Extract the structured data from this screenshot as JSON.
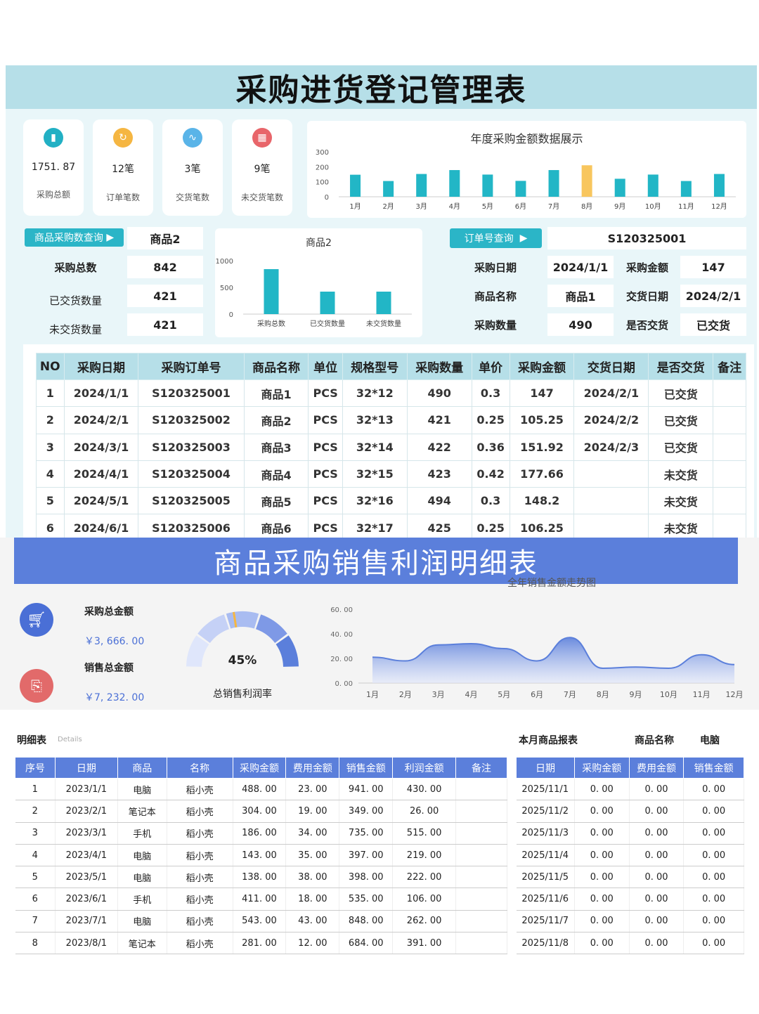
{
  "title1": "采购进货登记管理表",
  "kpis": [
    {
      "value": "1751. 87",
      "label": "采购总额",
      "icon": "bar-chart-icon",
      "color": "#22b0c4"
    },
    {
      "value": "12笔",
      "label": "订单笔数",
      "icon": "refresh-icon",
      "color": "#f5b642"
    },
    {
      "value": "3笔",
      "label": "交货笔数",
      "icon": "line-chart-icon",
      "color": "#5ab4e8"
    },
    {
      "value": "9笔",
      "label": "未交货笔数",
      "icon": "calendar-icon",
      "color": "#e8656a"
    }
  ],
  "annual": {
    "title": "年度采购金额数据展示"
  },
  "chart_data": [
    {
      "type": "bar",
      "title": "年度采购金额数据展示",
      "categories": [
        "1月",
        "2月",
        "3月",
        "4月",
        "5月",
        "6月",
        "7月",
        "8月",
        "9月",
        "10月",
        "11月",
        "12月"
      ],
      "values": [
        147,
        105,
        152,
        178,
        148,
        106,
        178,
        210,
        120,
        148,
        105,
        152
      ],
      "yticks": [
        "0",
        "100",
        "200",
        "300"
      ],
      "ylim": [
        0,
        300
      ],
      "highlight_index": 7,
      "color": "#22b6c6",
      "highlight_color": "#f8c65e"
    },
    {
      "type": "bar",
      "title": "商品2",
      "categories": [
        "采购总数",
        "已交货数量",
        "未交货数量"
      ],
      "values": [
        842,
        421,
        421
      ],
      "yticks": [
        "0",
        "500",
        "1000"
      ],
      "ylim": [
        0,
        1000
      ],
      "color": "#22b6c6"
    },
    {
      "type": "area",
      "title": "全年销售金额走势图",
      "categories": [
        "1月",
        "2月",
        "3月",
        "4月",
        "5月",
        "6月",
        "7月",
        "8月",
        "9月",
        "10月",
        "11月",
        "12月"
      ],
      "values": [
        21,
        18,
        31,
        32,
        28,
        18,
        37,
        12,
        13,
        12,
        23,
        15
      ],
      "yticks": [
        "0. 00",
        "20. 00",
        "40. 00",
        "60. 00"
      ],
      "ylim": [
        0,
        60
      ],
      "color": "#5b7fdb"
    },
    {
      "type": "gauge",
      "value": 0.45,
      "label": "45%",
      "caption": "总销售利润率"
    }
  ],
  "query": {
    "btn": "商品采购数查询",
    "product": "商品2",
    "rows": [
      {
        "label": "采购总数",
        "value": "842"
      },
      {
        "label": "已交货数量",
        "value": "421"
      },
      {
        "label": "未交货数量",
        "value": "421"
      }
    ],
    "chart_title": "商品2"
  },
  "order": {
    "btn": "订单号查询",
    "id": "S120325001",
    "r1": [
      "采购日期",
      "2024/1/1",
      "采购金额",
      "147"
    ],
    "r2": [
      "商品名称",
      "商品1",
      "交货日期",
      "2024/2/1"
    ],
    "r3": [
      "采购数量",
      "490",
      "是否交货",
      "已交货"
    ]
  },
  "t1": {
    "headers": [
      "NO",
      "采购日期",
      "采购订单号",
      "商品名称",
      "单位",
      "规格型号",
      "采购数量",
      "单价",
      "采购金额",
      "交货日期",
      "是否交货",
      "备注"
    ],
    "rows": [
      [
        "1",
        "2024/1/1",
        "S120325001",
        "商品1",
        "PCS",
        "32*12",
        "490",
        "0.3",
        "147",
        "2024/2/1",
        "已交货",
        ""
      ],
      [
        "2",
        "2024/2/1",
        "S120325002",
        "商品2",
        "PCS",
        "32*13",
        "421",
        "0.25",
        "105.25",
        "2024/2/2",
        "已交货",
        ""
      ],
      [
        "3",
        "2024/3/1",
        "S120325003",
        "商品3",
        "PCS",
        "32*14",
        "422",
        "0.36",
        "151.92",
        "2024/2/3",
        "已交货",
        ""
      ],
      [
        "4",
        "2024/4/1",
        "S120325004",
        "商品4",
        "PCS",
        "32*15",
        "423",
        "0.42",
        "177.66",
        "",
        "未交货",
        ""
      ],
      [
        "5",
        "2024/5/1",
        "S120325005",
        "商品5",
        "PCS",
        "32*16",
        "494",
        "0.3",
        "148.2",
        "",
        "未交货",
        ""
      ],
      [
        "6",
        "2024/6/1",
        "S120325006",
        "商品6",
        "PCS",
        "32*17",
        "425",
        "0.25",
        "106.25",
        "",
        "未交货",
        ""
      ]
    ]
  },
  "title2": "商品采购销售利润明细表",
  "sum": {
    "buy_label": "采购总金额",
    "buy_value": "￥3, 666. 00",
    "sell_label": "销售总金额",
    "sell_value": "￥7, 232. 00",
    "trend_title": "全年销售金额走势图"
  },
  "detail": {
    "title": "明细表",
    "sub": "Details",
    "headers": [
      "序号",
      "日期",
      "商品",
      "名称",
      "采购金额",
      "费用金额",
      "销售金额",
      "利润金额",
      "备注"
    ],
    "rows": [
      [
        "1",
        "2023/1/1",
        "电脑",
        "稻小壳",
        "488. 00",
        "23. 00",
        "941. 00",
        "430. 00",
        ""
      ],
      [
        "2",
        "2023/2/1",
        "笔记本",
        "稻小壳",
        "304. 00",
        "19. 00",
        "349. 00",
        "26. 00",
        ""
      ],
      [
        "3",
        "2023/3/1",
        "手机",
        "稻小壳",
        "186. 00",
        "34. 00",
        "735. 00",
        "515. 00",
        ""
      ],
      [
        "4",
        "2023/4/1",
        "电脑",
        "稻小壳",
        "143. 00",
        "35. 00",
        "397. 00",
        "219. 00",
        ""
      ],
      [
        "5",
        "2023/5/1",
        "电脑",
        "稻小壳",
        "138. 00",
        "38. 00",
        "398. 00",
        "222. 00",
        ""
      ],
      [
        "6",
        "2023/6/1",
        "手机",
        "稻小壳",
        "411. 00",
        "18. 00",
        "535. 00",
        "106. 00",
        ""
      ],
      [
        "7",
        "2023/7/1",
        "电脑",
        "稻小壳",
        "543. 00",
        "43. 00",
        "848. 00",
        "262. 00",
        ""
      ],
      [
        "8",
        "2023/8/1",
        "笔记本",
        "稻小壳",
        "281. 00",
        "12. 00",
        "684. 00",
        "391. 00",
        ""
      ]
    ]
  },
  "monthly": {
    "title": "本月商品报表",
    "name_label": "商品名称",
    "name_value": "电脑",
    "headers": [
      "日期",
      "采购金额",
      "费用金额",
      "销售金额"
    ],
    "rows": [
      [
        "2025/11/1",
        "0. 00",
        "0. 00",
        "0. 00"
      ],
      [
        "2025/11/2",
        "0. 00",
        "0. 00",
        "0. 00"
      ],
      [
        "2025/11/3",
        "0. 00",
        "0. 00",
        "0. 00"
      ],
      [
        "2025/11/4",
        "0. 00",
        "0. 00",
        "0. 00"
      ],
      [
        "2025/11/5",
        "0. 00",
        "0. 00",
        "0. 00"
      ],
      [
        "2025/11/6",
        "0. 00",
        "0. 00",
        "0. 00"
      ],
      [
        "2025/11/7",
        "0. 00",
        "0. 00",
        "0. 00"
      ],
      [
        "2025/11/8",
        "0. 00",
        "0. 00",
        "0. 00"
      ]
    ]
  }
}
